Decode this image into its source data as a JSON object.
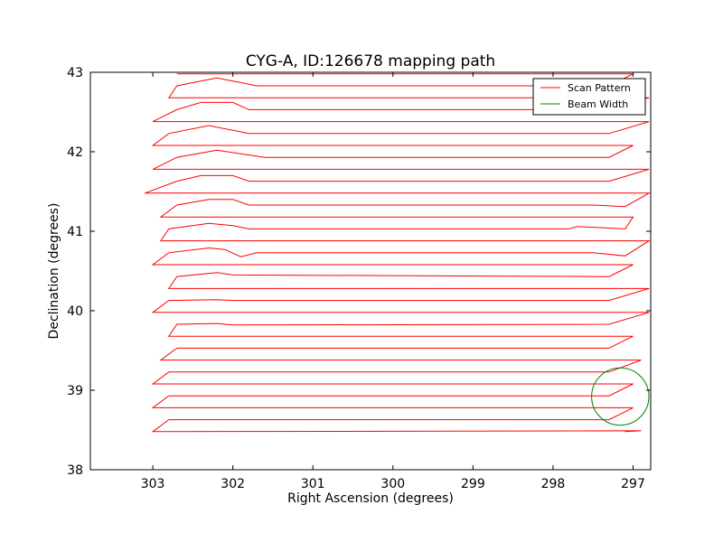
{
  "chart_data": {
    "type": "line",
    "title": "CYG-A, ID:126678 mapping path",
    "xlabel": "Right Ascension (degrees)",
    "ylabel": "Declination (degrees)",
    "xlim": [
      303.78,
      296.78
    ],
    "ylim": [
      38,
      43
    ],
    "x_inverted": true,
    "xticks": [
      "303",
      "302",
      "301",
      "300",
      "299",
      "298",
      "297"
    ],
    "yticks": [
      "38",
      "39",
      "40",
      "41",
      "42",
      "43"
    ],
    "grid": false,
    "legend_position": "top-right",
    "series": [
      {
        "name": "Scan Pattern",
        "color": "#ff0000",
        "points": [
          [
            297.1,
            38.48
          ],
          [
            296.9,
            38.49
          ],
          [
            303.0,
            38.48
          ],
          [
            302.8,
            38.63
          ],
          [
            297.3,
            38.63
          ],
          [
            297.0,
            38.78
          ],
          [
            303.0,
            38.78
          ],
          [
            302.8,
            38.93
          ],
          [
            297.3,
            38.93
          ],
          [
            297.0,
            39.08
          ],
          [
            303.0,
            39.08
          ],
          [
            302.8,
            39.23
          ],
          [
            297.3,
            39.23
          ],
          [
            296.9,
            39.38
          ],
          [
            302.9,
            39.38
          ],
          [
            302.7,
            39.53
          ],
          [
            297.3,
            39.53
          ],
          [
            297.0,
            39.68
          ],
          [
            302.8,
            39.68
          ],
          [
            302.7,
            39.83
          ],
          [
            302.2,
            39.84
          ],
          [
            302.0,
            39.82
          ],
          [
            297.3,
            39.83
          ],
          [
            296.8,
            39.98
          ],
          [
            303.0,
            39.98
          ],
          [
            302.8,
            40.13
          ],
          [
            302.2,
            40.14
          ],
          [
            302.0,
            40.13
          ],
          [
            297.3,
            40.13
          ],
          [
            296.8,
            40.28
          ],
          [
            302.8,
            40.28
          ],
          [
            302.7,
            40.43
          ],
          [
            302.2,
            40.48
          ],
          [
            302.0,
            40.45
          ],
          [
            297.3,
            40.43
          ],
          [
            297.0,
            40.58
          ],
          [
            303.0,
            40.58
          ],
          [
            302.8,
            40.73
          ],
          [
            302.3,
            40.79
          ],
          [
            302.1,
            40.77
          ],
          [
            301.9,
            40.68
          ],
          [
            301.7,
            40.73
          ],
          [
            297.5,
            40.73
          ],
          [
            297.1,
            40.69
          ],
          [
            296.8,
            40.88
          ],
          [
            302.9,
            40.88
          ],
          [
            302.8,
            41.03
          ],
          [
            302.3,
            41.1
          ],
          [
            302.0,
            41.07
          ],
          [
            301.8,
            41.03
          ],
          [
            297.8,
            41.03
          ],
          [
            297.7,
            41.06
          ],
          [
            297.1,
            41.03
          ],
          [
            297.0,
            41.18
          ],
          [
            302.9,
            41.18
          ],
          [
            302.7,
            41.33
          ],
          [
            302.3,
            41.4
          ],
          [
            302.0,
            41.4
          ],
          [
            301.8,
            41.33
          ],
          [
            297.5,
            41.33
          ],
          [
            297.1,
            41.31
          ],
          [
            296.8,
            41.48
          ],
          [
            303.1,
            41.48
          ],
          [
            302.7,
            41.63
          ],
          [
            302.4,
            41.7
          ],
          [
            302.0,
            41.7
          ],
          [
            301.8,
            41.63
          ],
          [
            297.3,
            41.63
          ],
          [
            296.8,
            41.78
          ],
          [
            303.0,
            41.78
          ],
          [
            302.7,
            41.93
          ],
          [
            302.2,
            42.02
          ],
          [
            301.6,
            41.93
          ],
          [
            297.3,
            41.93
          ],
          [
            297.0,
            42.08
          ],
          [
            303.0,
            42.08
          ],
          [
            302.8,
            42.23
          ],
          [
            302.3,
            42.33
          ],
          [
            301.8,
            42.23
          ],
          [
            297.3,
            42.23
          ],
          [
            296.8,
            42.38
          ],
          [
            303.0,
            42.38
          ],
          [
            302.7,
            42.53
          ],
          [
            302.4,
            42.62
          ],
          [
            302.0,
            42.62
          ],
          [
            301.8,
            42.53
          ],
          [
            297.3,
            42.53
          ],
          [
            296.8,
            42.68
          ],
          [
            302.8,
            42.68
          ],
          [
            302.7,
            42.83
          ],
          [
            302.2,
            42.93
          ],
          [
            301.7,
            42.83
          ],
          [
            297.3,
            42.83
          ],
          [
            297.0,
            42.98
          ],
          [
            302.7,
            42.98
          ]
        ]
      },
      {
        "name": "Beam Width",
        "color": "#008000",
        "shape": "circle",
        "center": [
          297.16,
          38.92
        ],
        "radius_deg": 0.36
      }
    ]
  }
}
